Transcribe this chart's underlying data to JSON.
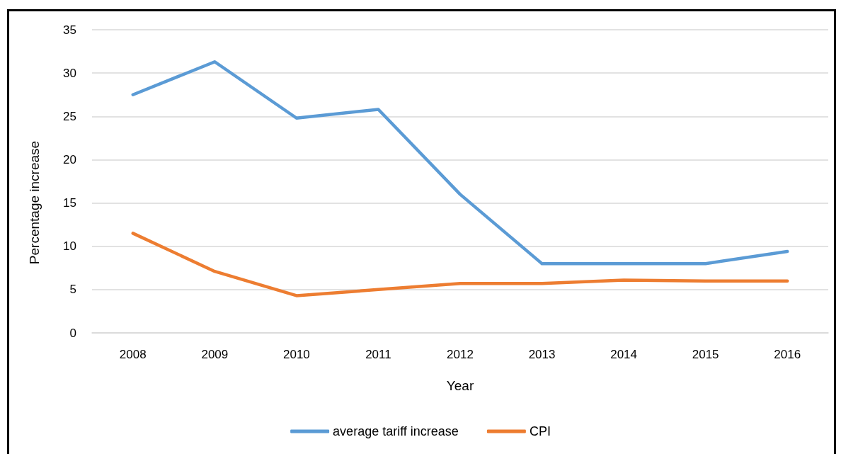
{
  "chart_data": {
    "type": "line",
    "xlabel": "Year",
    "ylabel": "Percentage increase",
    "categories": [
      "2008",
      "2009",
      "2010",
      "2011",
      "2012",
      "2013",
      "2014",
      "2015",
      "2016"
    ],
    "series": [
      {
        "name": "average tariff increase",
        "color": "#5b9bd5",
        "values": [
          27.5,
          31.3,
          24.8,
          25.8,
          16,
          8,
          8,
          8,
          9.4
        ]
      },
      {
        "name": "CPI",
        "color": "#ed7d31",
        "values": [
          11.5,
          7.1,
          4.3,
          5.0,
          5.7,
          5.7,
          6.1,
          6.0,
          6.0
        ]
      }
    ],
    "ylim": [
      0,
      35
    ],
    "yticks": [
      0,
      5,
      10,
      15,
      20,
      25,
      30,
      35
    ],
    "grid": "y",
    "legend": "bottom"
  }
}
